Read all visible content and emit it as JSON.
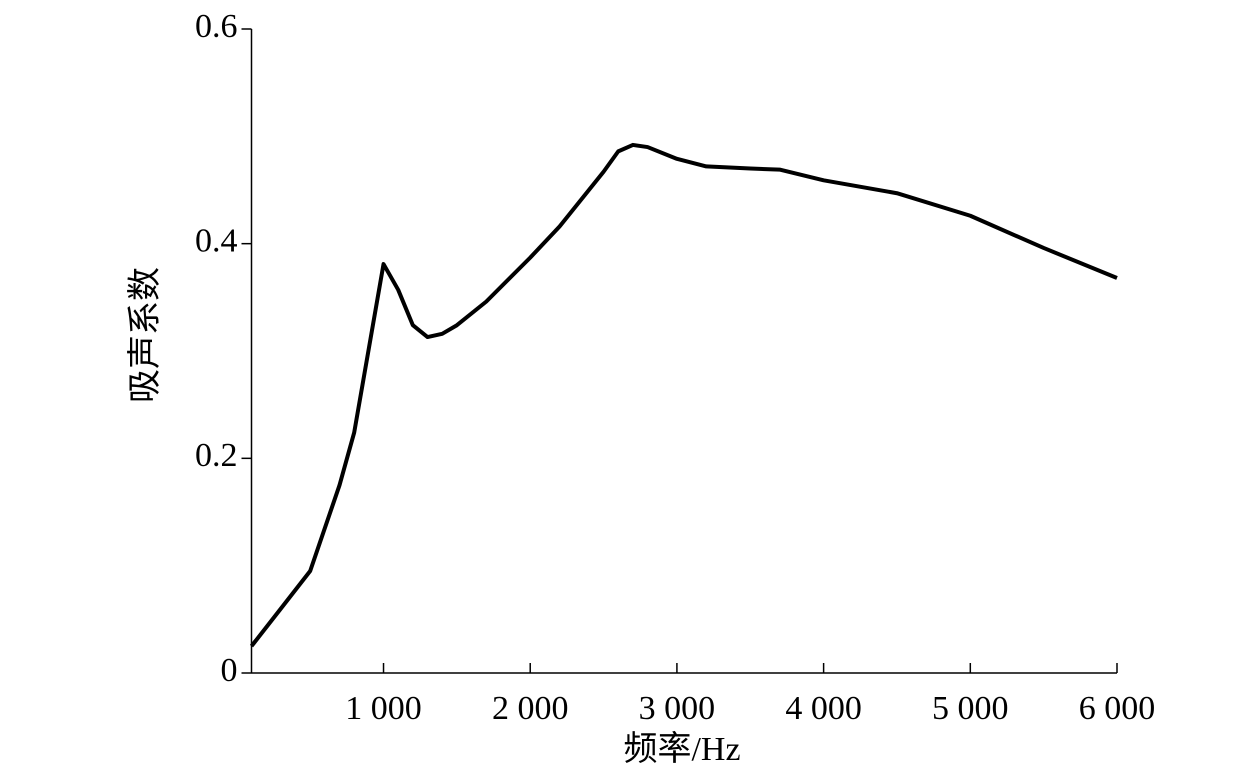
{
  "chart_data": {
    "type": "line",
    "x_label": "频率/Hz",
    "y_label": "吸声系数",
    "series": [
      {
        "name": "吸声系数",
        "color": "#000000",
        "x": [
          100,
          300,
          500,
          700,
          800,
          1000,
          1100,
          1200,
          1300,
          1400,
          1500,
          1700,
          2000,
          2200,
          2500,
          2600,
          2700,
          2800,
          3000,
          3200,
          3500,
          3700,
          4000,
          4500,
          5000,
          5500,
          6000
        ],
        "values": [
          0.025,
          0.06,
          0.095,
          0.175,
          0.224,
          0.381,
          0.357,
          0.324,
          0.313,
          0.316,
          0.324,
          0.346,
          0.387,
          0.416,
          0.467,
          0.486,
          0.492,
          0.49,
          0.479,
          0.472,
          0.47,
          0.469,
          0.459,
          0.447,
          0.426,
          0.396,
          0.368
        ]
      }
    ],
    "xlim": [
      100,
      6000
    ],
    "xticks": [
      {
        "value": 1000,
        "label": "1 000"
      },
      {
        "value": 2000,
        "label": "2 000"
      },
      {
        "value": 3000,
        "label": "3 000"
      },
      {
        "value": 4000,
        "label": "4 000"
      },
      {
        "value": 5000,
        "label": "5 000"
      },
      {
        "value": 6000,
        "label": "6 000"
      }
    ],
    "ylim": [
      0,
      0.6
    ],
    "yticks": [
      0,
      0.2,
      0.4,
      0.6
    ],
    "grid": false
  }
}
